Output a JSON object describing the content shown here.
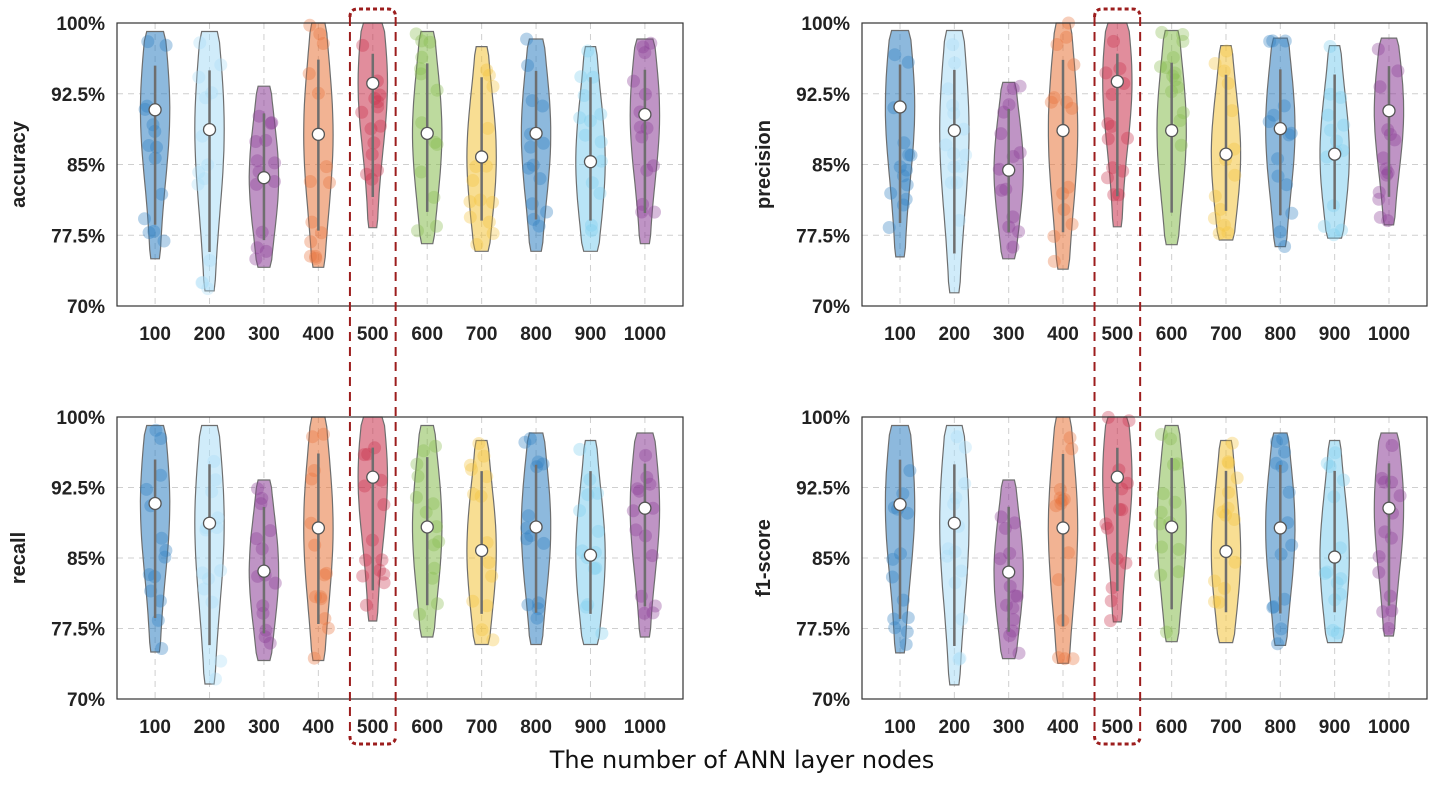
{
  "chart_data": {
    "type": "violin",
    "xlabel": "The number of ANN layer nodes",
    "categories": [
      "100",
      "200",
      "300",
      "400",
      "500",
      "600",
      "700",
      "800",
      "900",
      "1000"
    ],
    "y_ticks": [
      "70%",
      "77.5%",
      "85%",
      "92.5%",
      "100%"
    ],
    "ylim": [
      70,
      100
    ],
    "highlight_category": "500",
    "colors": [
      "#2f7fc1",
      "#a9dcf5",
      "#8a3d96",
      "#e8743b",
      "#c8304a",
      "#86bb4e",
      "#f3c23b",
      "#2f7fc1",
      "#7fcdee",
      "#8a3d96"
    ],
    "panels": [
      {
        "metric": "accuracy",
        "medians": [
          90.8,
          88.7,
          83.6,
          88.2,
          93.6,
          88.3,
          85.8,
          88.3,
          85.3,
          90.3
        ],
        "mins": [
          75.0,
          71.6,
          74.1,
          74.1,
          78.3,
          76.6,
          75.8,
          75.8,
          75.8,
          76.6
        ],
        "maxs": [
          99.1,
          99.1,
          93.3,
          100.0,
          100.0,
          99.1,
          97.5,
          98.3,
          97.5,
          98.3
        ]
      },
      {
        "metric": "precision",
        "medians": [
          91.1,
          88.6,
          84.4,
          88.6,
          93.8,
          88.6,
          86.1,
          88.8,
          86.1,
          90.7
        ],
        "mins": [
          75.2,
          71.4,
          75.0,
          73.9,
          78.4,
          76.5,
          77.0,
          76.3,
          77.2,
          78.6
        ],
        "maxs": [
          99.2,
          99.2,
          93.7,
          100.0,
          100.0,
          99.2,
          97.6,
          98.4,
          97.6,
          98.4
        ]
      },
      {
        "metric": "recall",
        "medians": [
          90.8,
          88.7,
          83.6,
          88.2,
          93.6,
          88.3,
          85.8,
          88.3,
          85.3,
          90.3
        ],
        "mins": [
          75.0,
          71.6,
          74.1,
          74.1,
          78.3,
          76.6,
          75.8,
          75.8,
          75.8,
          76.6
        ],
        "maxs": [
          99.1,
          99.1,
          93.3,
          100.0,
          100.0,
          99.1,
          97.5,
          98.3,
          97.5,
          98.3
        ]
      },
      {
        "metric": "f1-score",
        "medians": [
          90.7,
          88.7,
          83.5,
          88.2,
          93.6,
          88.3,
          85.7,
          88.2,
          85.1,
          90.3
        ],
        "mins": [
          74.9,
          71.5,
          74.3,
          73.8,
          78.2,
          76.1,
          76.0,
          75.7,
          76.0,
          76.7
        ],
        "maxs": [
          99.1,
          99.1,
          93.3,
          100.0,
          100.0,
          99.1,
          97.5,
          98.3,
          97.5,
          98.3
        ]
      }
    ]
  }
}
